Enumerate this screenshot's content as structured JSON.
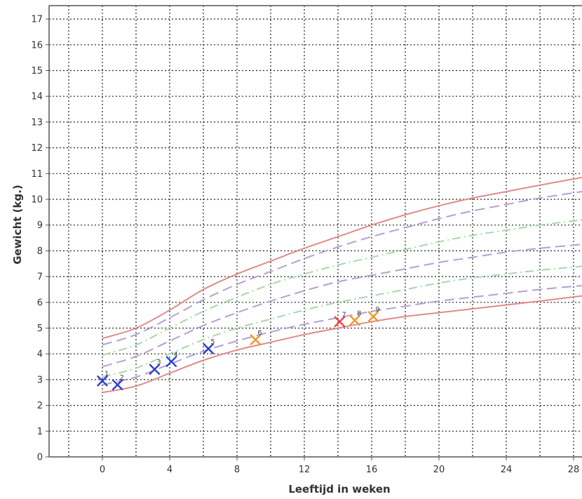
{
  "chart_data": {
    "type": "line",
    "xlabel": "Leeftijd in weken",
    "ylabel": "Gewicht (kg.)",
    "xlim": [
      -3,
      28.5
    ],
    "ylim": [
      0,
      17.5
    ],
    "x_ticks": [
      0,
      4,
      8,
      12,
      16,
      20,
      24,
      28
    ],
    "y_ticks": [
      0,
      1,
      2,
      3,
      4,
      5,
      6,
      7,
      8,
      9,
      10,
      11,
      12,
      13,
      14,
      15,
      16,
      17
    ],
    "grid": true,
    "reference_curves": [
      {
        "style": "solid",
        "color": "#e08a8a",
        "x": [
          0,
          2,
          4,
          6,
          8,
          10,
          12,
          14,
          16,
          18,
          20,
          22,
          24,
          26,
          28.5
        ],
        "y": [
          4.6,
          5.0,
          5.7,
          6.5,
          7.1,
          7.6,
          8.1,
          8.55,
          9.0,
          9.4,
          9.75,
          10.05,
          10.3,
          10.55,
          10.85
        ]
      },
      {
        "style": "dashed",
        "color": "#b4a0d2",
        "x": [
          0,
          2,
          4,
          6,
          8,
          10,
          12,
          14,
          16,
          18,
          20,
          22,
          24,
          26,
          28.5
        ],
        "y": [
          4.35,
          4.75,
          5.4,
          6.1,
          6.7,
          7.2,
          7.7,
          8.15,
          8.55,
          8.9,
          9.25,
          9.55,
          9.8,
          10.05,
          10.3
        ]
      },
      {
        "style": "dashdot",
        "color": "#a8d8a8",
        "x": [
          0,
          2,
          4,
          6,
          8,
          10,
          12,
          14,
          16,
          18,
          20,
          22,
          24,
          26,
          28.5
        ],
        "y": [
          3.95,
          4.35,
          5.0,
          5.65,
          6.2,
          6.7,
          7.1,
          7.45,
          7.75,
          8.05,
          8.35,
          8.6,
          8.8,
          9.0,
          9.2
        ]
      },
      {
        "style": "dashed",
        "color": "#b4a0d2",
        "x": [
          0,
          2,
          4,
          6,
          8,
          10,
          12,
          14,
          16,
          18,
          20,
          22,
          24,
          26,
          28.5
        ],
        "y": [
          3.5,
          3.9,
          4.5,
          5.1,
          5.6,
          6.05,
          6.45,
          6.8,
          7.05,
          7.3,
          7.55,
          7.75,
          7.95,
          8.1,
          8.25
        ]
      },
      {
        "style": "dashdot",
        "color": "#a8d8a8",
        "x": [
          0,
          2,
          4,
          6,
          8,
          10,
          12,
          14,
          16,
          18,
          20,
          22,
          24,
          26,
          28.5
        ],
        "y": [
          3.1,
          3.45,
          4.0,
          4.55,
          5.0,
          5.35,
          5.7,
          6.0,
          6.25,
          6.5,
          6.75,
          6.95,
          7.1,
          7.25,
          7.4
        ]
      },
      {
        "style": "dashed",
        "color": "#b4a0d2",
        "x": [
          0,
          2,
          4,
          6,
          8,
          10,
          12,
          14,
          16,
          18,
          20,
          22,
          24,
          26,
          28.5
        ],
        "y": [
          2.8,
          3.1,
          3.6,
          4.1,
          4.5,
          4.85,
          5.15,
          5.4,
          5.65,
          5.85,
          6.05,
          6.2,
          6.35,
          6.5,
          6.65
        ]
      },
      {
        "style": "solid",
        "color": "#e08a8a",
        "x": [
          0,
          2,
          4,
          6,
          8,
          10,
          12,
          14,
          16,
          18,
          20,
          22,
          24,
          26,
          28.5
        ],
        "y": [
          2.5,
          2.75,
          3.25,
          3.75,
          4.15,
          4.45,
          4.75,
          5.0,
          5.25,
          5.45,
          5.6,
          5.75,
          5.9,
          6.05,
          6.25
        ]
      }
    ],
    "measurements": [
      {
        "label": "1",
        "x": 0.0,
        "y": 2.95,
        "color": "#2c3fd6"
      },
      {
        "label": "2",
        "x": 0.9,
        "y": 2.8,
        "color": "#2c3fd6"
      },
      {
        "label": "3",
        "x": 3.1,
        "y": 3.4,
        "color": "#2c3fd6"
      },
      {
        "label": "4",
        "x": 4.1,
        "y": 3.7,
        "color": "#2c3fd6"
      },
      {
        "label": "5",
        "x": 6.3,
        "y": 4.2,
        "color": "#2c3fd6"
      },
      {
        "label": "6",
        "x": 9.1,
        "y": 4.55,
        "color": "#f0962a"
      },
      {
        "label": "7",
        "x": 14.1,
        "y": 5.25,
        "color": "#e84040"
      },
      {
        "label": "8",
        "x": 15.0,
        "y": 5.3,
        "color": "#f0962a"
      },
      {
        "label": "9",
        "x": 16.1,
        "y": 5.45,
        "color": "#f0962a"
      }
    ]
  }
}
